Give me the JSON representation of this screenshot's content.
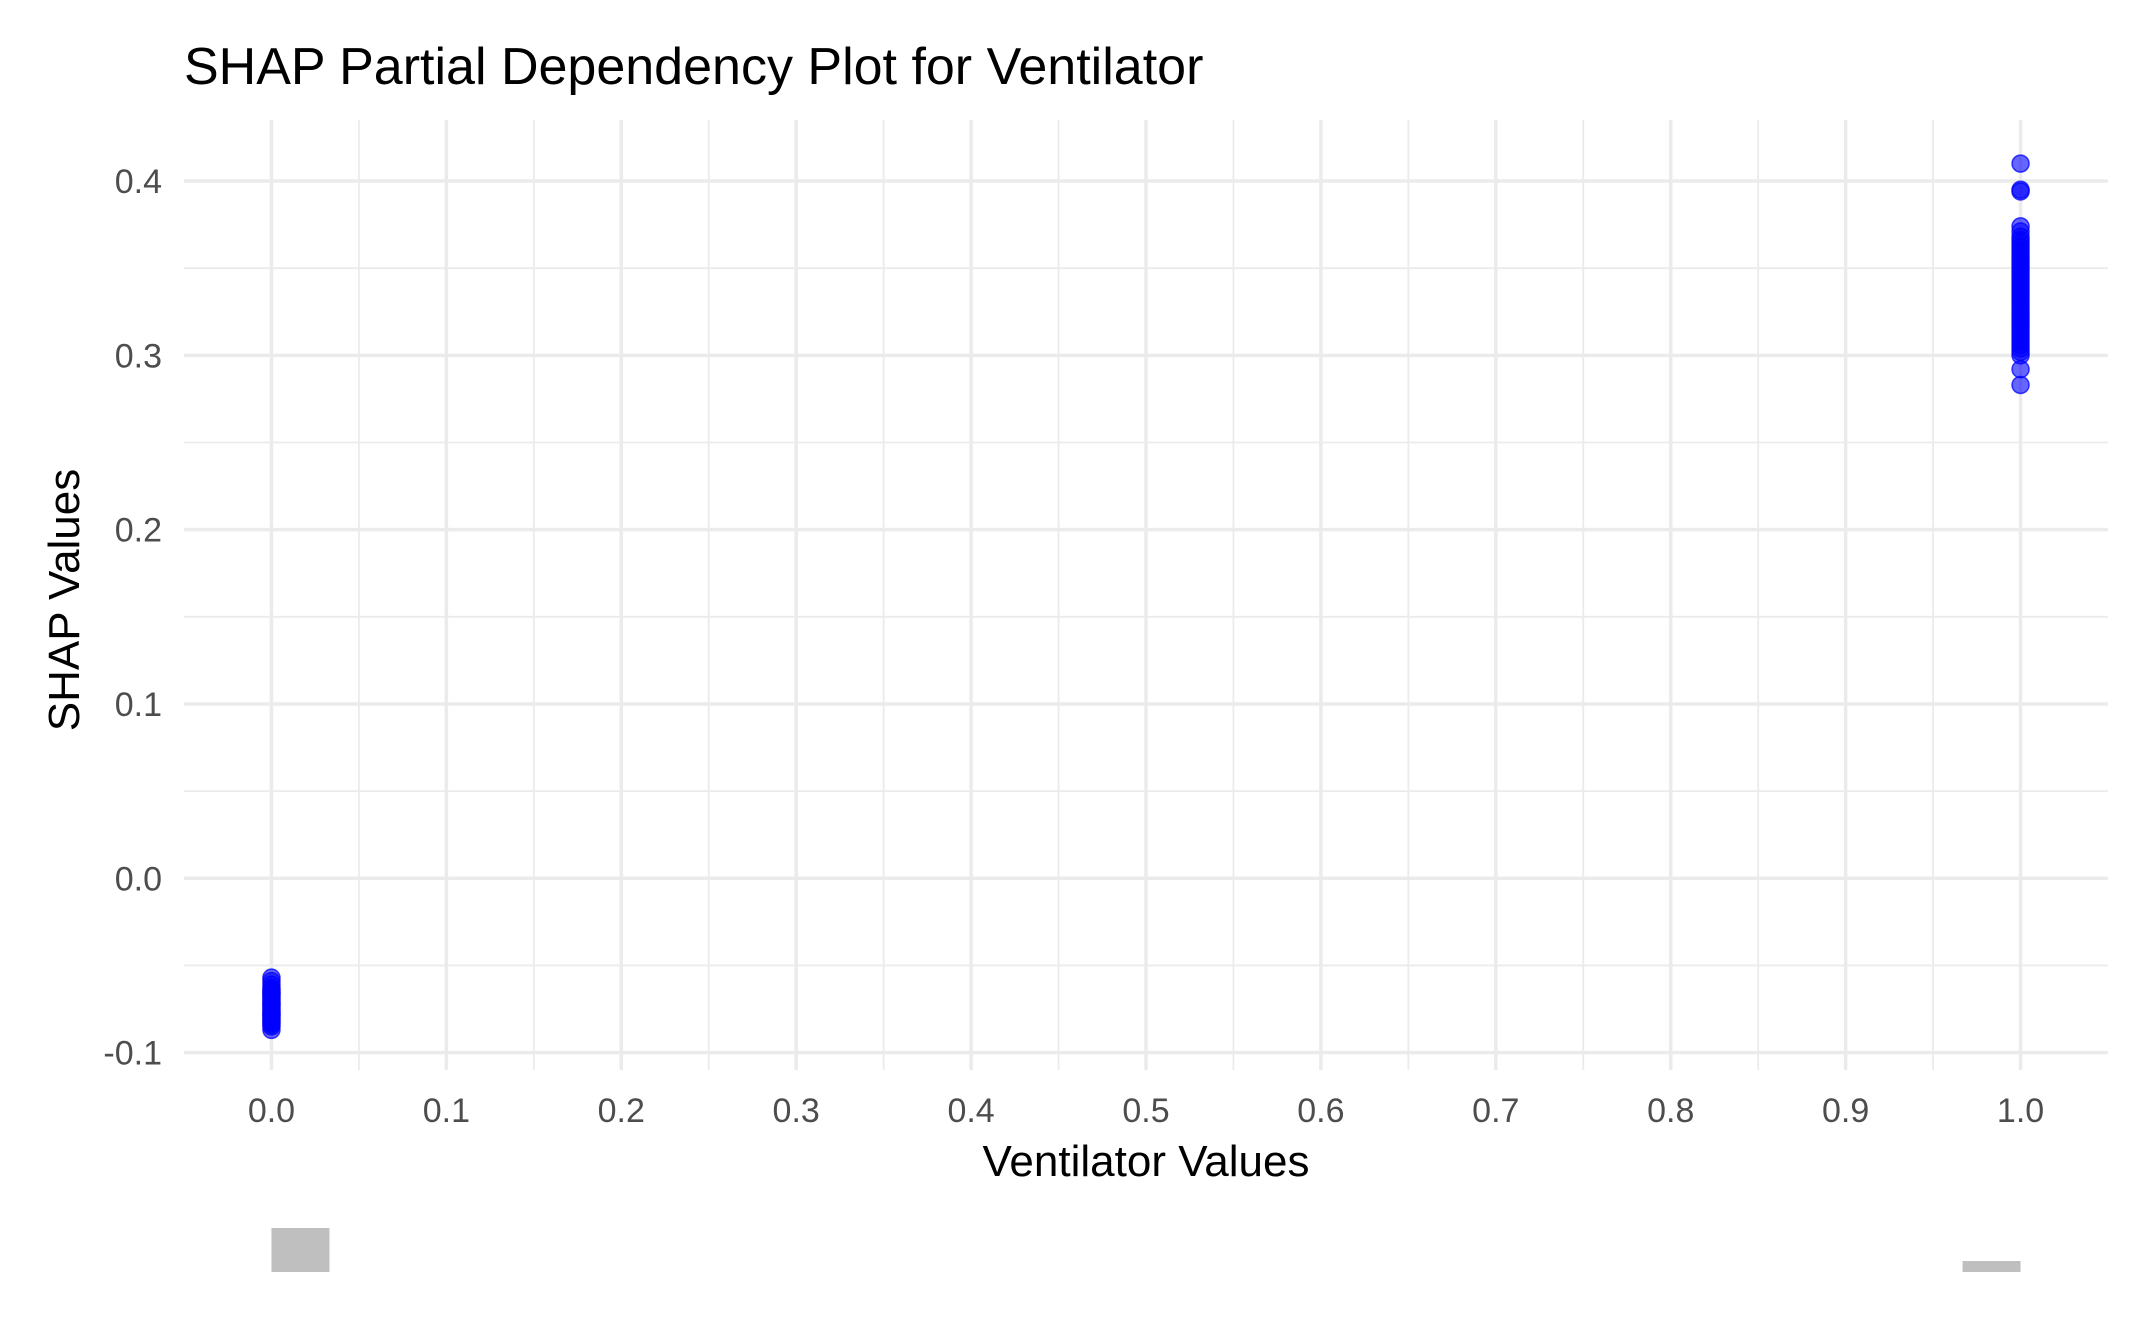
{
  "chart_data": {
    "type": "scatter",
    "title": "SHAP Partial Dependency Plot for Ventilator",
    "xlabel": "Ventilator Values",
    "ylabel": "SHAP Values",
    "xlim": [
      -0.05,
      1.05
    ],
    "ylim": [
      -0.11,
      0.435
    ],
    "x_ticks": [
      0.0,
      0.1,
      0.2,
      0.3,
      0.4,
      0.5,
      0.6,
      0.7,
      0.8,
      0.9,
      1.0
    ],
    "x_tick_labels": [
      "0.0",
      "0.1",
      "0.2",
      "0.3",
      "0.4",
      "0.5",
      "0.6",
      "0.7",
      "0.8",
      "0.9",
      "1.0"
    ],
    "y_ticks": [
      -0.1,
      0.0,
      0.1,
      0.2,
      0.3,
      0.4
    ],
    "y_tick_labels": [
      "-0.1",
      "0.0",
      "0.1",
      "0.2",
      "0.3",
      "0.4"
    ],
    "grid": true,
    "point_color": "#0000ff",
    "series": [
      {
        "x": [
          0,
          0,
          0,
          0,
          0,
          0,
          0,
          0,
          0,
          0,
          0,
          0,
          0,
          0,
          0,
          0,
          0,
          0,
          0,
          0,
          0,
          0,
          0,
          0,
          0,
          0,
          0,
          0,
          0,
          0,
          1,
          1,
          1,
          1,
          1,
          1,
          1,
          1,
          1,
          1,
          1,
          1,
          1,
          1,
          1,
          1,
          1,
          1,
          1,
          1,
          1,
          1,
          1,
          1,
          1,
          1,
          1,
          1,
          1,
          1,
          1,
          1,
          1,
          1,
          1,
          1,
          1,
          1,
          1,
          1,
          1,
          1
        ],
        "y": [
          -0.057,
          -0.059,
          -0.061,
          -0.063,
          -0.064,
          -0.065,
          -0.066,
          -0.067,
          -0.068,
          -0.069,
          -0.07,
          -0.071,
          -0.072,
          -0.073,
          -0.074,
          -0.075,
          -0.076,
          -0.077,
          -0.078,
          -0.079,
          -0.08,
          -0.081,
          -0.082,
          -0.083,
          -0.084,
          -0.085,
          -0.087,
          -0.066,
          -0.072,
          -0.078,
          0.41,
          0.395,
          0.394,
          0.374,
          0.371,
          0.368,
          0.366,
          0.364,
          0.362,
          0.36,
          0.358,
          0.356,
          0.354,
          0.352,
          0.35,
          0.348,
          0.346,
          0.344,
          0.342,
          0.34,
          0.338,
          0.336,
          0.334,
          0.332,
          0.33,
          0.328,
          0.326,
          0.324,
          0.322,
          0.32,
          0.318,
          0.316,
          0.314,
          0.312,
          0.31,
          0.308,
          0.306,
          0.304,
          0.302,
          0.3,
          0.292,
          0.283
        ]
      }
    ],
    "marginal_histogram": {
      "x_bins": [
        0.0,
        1.0
      ],
      "relative_heights": [
        1.0,
        0.25
      ],
      "color": "#bfbfbf"
    }
  }
}
